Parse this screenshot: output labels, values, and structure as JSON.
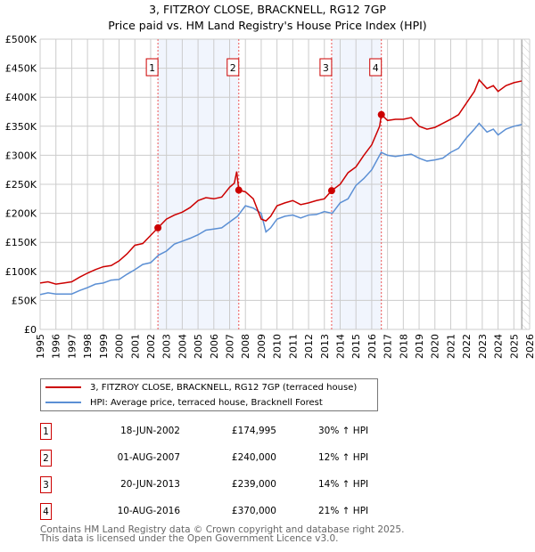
{
  "chart_data": {
    "type": "line",
    "title": "3, FITZROY CLOSE, BRACKNELL, RG12 7GP",
    "subtitle": "Price paid vs. HM Land Registry's House Price Index (HPI)",
    "xlim": [
      1995,
      2026
    ],
    "ylim": [
      0,
      500000
    ],
    "x_ticks": [
      "1995",
      "1996",
      "1997",
      "1998",
      "1999",
      "2000",
      "2001",
      "2002",
      "2003",
      "2004",
      "2005",
      "2006",
      "2007",
      "2008",
      "2009",
      "2010",
      "2011",
      "2012",
      "2013",
      "2014",
      "2015",
      "2016",
      "2017",
      "2018",
      "2019",
      "2020",
      "2021",
      "2022",
      "2023",
      "2024",
      "2025",
      "2026"
    ],
    "y_ticks": [
      {
        "v": 0,
        "label": "£0"
      },
      {
        "v": 50000,
        "label": "£50K"
      },
      {
        "v": 100000,
        "label": "£100K"
      },
      {
        "v": 150000,
        "label": "£150K"
      },
      {
        "v": 200000,
        "label": "£200K"
      },
      {
        "v": 250000,
        "label": "£250K"
      },
      {
        "v": 300000,
        "label": "£300K"
      },
      {
        "v": 350000,
        "label": "£350K"
      },
      {
        "v": 400000,
        "label": "£400K"
      },
      {
        "v": 450000,
        "label": "£450K"
      },
      {
        "v": 500000,
        "label": "£500K"
      }
    ],
    "grid": true,
    "series": [
      {
        "name": "3, FITZROY CLOSE, BRACKNELL, RG12 7GP (terraced house)",
        "color": "#cc0000",
        "x": [
          1995,
          1995.5,
          1996,
          1996.5,
          1997,
          1997.5,
          1998,
          1998.5,
          1999,
          1999.5,
          2000,
          2000.5,
          2001,
          2001.5,
          2002,
          2002.46,
          2003,
          2003.5,
          2004,
          2004.5,
          2005,
          2005.5,
          2006,
          2006.5,
          2007,
          2007.3,
          2007.45,
          2007.58,
          2008,
          2008.5,
          2009,
          2009.3,
          2009.6,
          2010,
          2010.5,
          2011,
          2011.5,
          2012,
          2012.5,
          2013,
          2013.46,
          2014,
          2014.5,
          2015,
          2015.5,
          2016,
          2016.5,
          2016.61,
          2017,
          2017.5,
          2018,
          2018.5,
          2019,
          2019.5,
          2020,
          2020.5,
          2021,
          2021.5,
          2022,
          2022.5,
          2022.8,
          2023.3,
          2023.7,
          2024,
          2024.5,
          2025,
          2025.5
        ],
        "y": [
          80000,
          82000,
          78000,
          80000,
          82000,
          90000,
          97000,
          103000,
          108000,
          110000,
          118000,
          130000,
          145000,
          148000,
          162000,
          174995,
          190000,
          197000,
          202000,
          210000,
          222000,
          227000,
          225000,
          228000,
          245000,
          252000,
          272000,
          240000,
          237000,
          225000,
          190000,
          187000,
          195000,
          213000,
          218000,
          222000,
          215000,
          218000,
          222000,
          225000,
          239000,
          250000,
          270000,
          280000,
          300000,
          318000,
          350000,
          370000,
          360000,
          362000,
          362000,
          365000,
          350000,
          345000,
          348000,
          355000,
          362000,
          370000,
          390000,
          410000,
          430000,
          415000,
          420000,
          410000,
          420000,
          425000,
          428000
        ]
      },
      {
        "name": "HPI: Average price, terraced house, Bracknell Forest",
        "color": "#5b8fd4",
        "x": [
          1995,
          1995.5,
          1996,
          1997,
          1997.5,
          1998,
          1998.5,
          1999,
          1999.5,
          2000,
          2000.5,
          2001,
          2001.5,
          2002,
          2002.5,
          2003,
          2003.5,
          2004,
          2004.5,
          2005,
          2005.5,
          2006,
          2006.5,
          2007,
          2007.5,
          2008,
          2008.5,
          2009,
          2009.3,
          2009.6,
          2010,
          2010.5,
          2011,
          2011.5,
          2012,
          2012.5,
          2013,
          2013.5,
          2014,
          2014.5,
          2015,
          2015.5,
          2016,
          2016.6,
          2017,
          2017.5,
          2018,
          2018.5,
          2019,
          2019.5,
          2020,
          2020.5,
          2021,
          2021.5,
          2022,
          2022.5,
          2022.8,
          2023.3,
          2023.7,
          2024,
          2024.5,
          2025,
          2025.5
        ],
        "y": [
          60000,
          63000,
          61000,
          61000,
          67000,
          72000,
          78000,
          80000,
          85000,
          86000,
          95000,
          103000,
          112000,
          115000,
          128000,
          135000,
          147000,
          152000,
          157000,
          163000,
          171000,
          173000,
          175000,
          185000,
          195000,
          213000,
          209000,
          200000,
          168000,
          175000,
          190000,
          195000,
          197000,
          192000,
          197000,
          198000,
          203000,
          200000,
          218000,
          225000,
          248000,
          260000,
          275000,
          305000,
          300000,
          298000,
          300000,
          302000,
          295000,
          290000,
          292000,
          295000,
          305000,
          312000,
          330000,
          345000,
          355000,
          340000,
          345000,
          335000,
          345000,
          350000,
          353000
        ]
      }
    ],
    "sales": [
      {
        "n": "1",
        "x": 2002.46,
        "y": 174995,
        "date": "18-JUN-2002",
        "price": "£174,995",
        "hpi": "30% ↑ HPI"
      },
      {
        "n": "2",
        "x": 2007.58,
        "y": 240000,
        "date": "01-AUG-2007",
        "price": "£240,000",
        "hpi": "12% ↑ HPI"
      },
      {
        "n": "3",
        "x": 2013.46,
        "y": 239000,
        "date": "20-JUN-2013",
        "price": "£239,000",
        "hpi": "14% ↑ HPI"
      },
      {
        "n": "4",
        "x": 2016.61,
        "y": 370000,
        "date": "10-AUG-2016",
        "price": "£370,000",
        "hpi": "21% ↑ HPI"
      }
    ],
    "shaded_periods": [
      [
        2002.46,
        2007.58
      ],
      [
        2013.46,
        2016.61
      ]
    ],
    "forecast_start": 2025.5,
    "legend_position": "below"
  },
  "footer": {
    "line1": "Contains HM Land Registry data © Crown copyright and database right 2025.",
    "line2": "This data is licensed under the Open Government Licence v3.0."
  }
}
